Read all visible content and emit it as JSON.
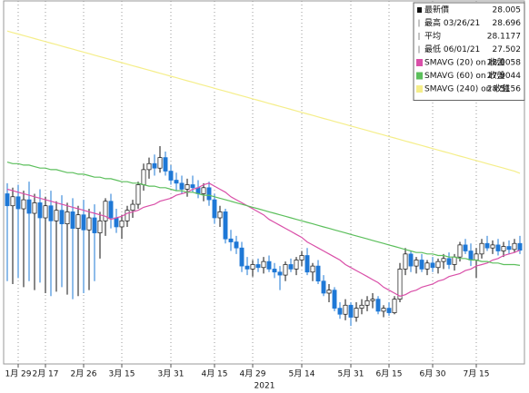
{
  "chart_data": {
    "type": "candlestick",
    "ylim": [
      27.25,
      29.66
    ],
    "x_label": "2021",
    "up_color": "#ffffff",
    "down_color": "#1e78d6",
    "categories": [
      null,
      null,
      "1月 29",
      null,
      null,
      null,
      null,
      "2月 17",
      null,
      null,
      null,
      null,
      null,
      null,
      "2月 26",
      null,
      null,
      null,
      null,
      null,
      null,
      "3月 15",
      null,
      null,
      null,
      null,
      null,
      null,
      null,
      null,
      "3月 31",
      null,
      null,
      null,
      null,
      null,
      null,
      null,
      "4月 15",
      null,
      null,
      null,
      null,
      null,
      null,
      "4月 29",
      null,
      null,
      null,
      null,
      null,
      null,
      null,
      null,
      "5月 14",
      null,
      null,
      null,
      null,
      null,
      null,
      null,
      null,
      "5月 31",
      null,
      null,
      null,
      null,
      null,
      null,
      "6月 15",
      null,
      null,
      null,
      null,
      null,
      null,
      null,
      "6月 30",
      null,
      null,
      null,
      null,
      null,
      null,
      null,
      "7月 15",
      null,
      null,
      null,
      null,
      null,
      null,
      null,
      null
    ],
    "candles": [
      [
        28.38,
        28.45,
        27.8,
        28.3
      ],
      [
        28.3,
        28.42,
        27.78,
        28.36
      ],
      [
        28.36,
        28.44,
        27.82,
        28.28
      ],
      [
        28.28,
        28.4,
        27.76,
        28.34
      ],
      [
        28.34,
        28.46,
        27.8,
        28.25
      ],
      [
        28.25,
        28.38,
        27.74,
        28.32
      ],
      [
        28.32,
        28.41,
        27.79,
        28.22
      ],
      [
        28.22,
        28.36,
        27.72,
        28.3
      ],
      [
        28.3,
        28.4,
        27.7,
        28.2
      ],
      [
        28.2,
        28.33,
        27.73,
        28.27
      ],
      [
        28.27,
        28.37,
        27.76,
        28.18
      ],
      [
        28.18,
        28.32,
        27.71,
        28.26
      ],
      [
        28.26,
        28.35,
        27.68,
        28.15
      ],
      [
        28.15,
        28.3,
        27.7,
        28.24
      ],
      [
        28.24,
        28.34,
        27.72,
        28.14
      ],
      [
        28.14,
        28.28,
        27.74,
        28.22
      ],
      [
        28.22,
        28.31,
        27.8,
        28.12
      ],
      [
        28.12,
        28.26,
        27.95,
        28.2
      ],
      [
        28.2,
        28.35,
        28.1,
        28.33
      ],
      [
        28.33,
        28.38,
        28.15,
        28.22
      ],
      [
        28.22,
        28.28,
        28.12,
        28.16
      ],
      [
        28.16,
        28.24,
        28.08,
        28.2
      ],
      [
        28.2,
        28.3,
        28.16,
        28.27
      ],
      [
        28.27,
        28.34,
        28.22,
        28.31
      ],
      [
        28.31,
        28.46,
        28.28,
        28.44
      ],
      [
        28.44,
        28.58,
        28.4,
        28.54
      ],
      [
        28.54,
        28.62,
        28.48,
        28.58
      ],
      [
        28.58,
        28.64,
        28.5,
        28.55
      ],
      [
        28.55,
        28.696,
        28.52,
        28.62
      ],
      [
        28.62,
        28.66,
        28.5,
        28.53
      ],
      [
        28.53,
        28.57,
        28.44,
        28.47
      ],
      [
        28.47,
        28.52,
        28.4,
        28.45
      ],
      [
        28.45,
        28.5,
        28.38,
        28.41
      ],
      [
        28.41,
        28.48,
        28.36,
        28.44
      ],
      [
        28.44,
        28.5,
        28.39,
        28.42
      ],
      [
        28.42,
        28.47,
        28.35,
        28.38
      ],
      [
        28.38,
        28.45,
        28.33,
        28.42
      ],
      [
        28.42,
        28.46,
        28.3,
        28.34
      ],
      [
        28.34,
        28.38,
        28.18,
        28.22
      ],
      [
        28.22,
        28.3,
        28.16,
        28.26
      ],
      [
        28.26,
        28.28,
        28.05,
        28.08
      ],
      [
        28.08,
        28.14,
        28.0,
        28.06
      ],
      [
        28.06,
        28.1,
        27.98,
        28.02
      ],
      [
        28.02,
        28.06,
        27.86,
        27.9
      ],
      [
        27.9,
        27.96,
        27.84,
        27.88
      ],
      [
        27.88,
        27.94,
        27.83,
        27.91
      ],
      [
        27.91,
        27.95,
        27.86,
        27.89
      ],
      [
        27.89,
        27.96,
        27.85,
        27.93
      ],
      [
        27.93,
        27.97,
        27.86,
        27.88
      ],
      [
        27.88,
        27.92,
        27.82,
        27.86
      ],
      [
        27.86,
        27.9,
        27.74,
        27.84
      ],
      [
        27.84,
        27.93,
        27.8,
        27.91
      ],
      [
        27.91,
        27.95,
        27.86,
        27.88
      ],
      [
        27.88,
        27.96,
        27.84,
        27.94
      ],
      [
        27.94,
        28.0,
        27.9,
        27.97
      ],
      [
        27.97,
        28.02,
        27.84,
        27.86
      ],
      [
        27.86,
        27.92,
        27.8,
        27.9
      ],
      [
        27.9,
        27.94,
        27.78,
        27.8
      ],
      [
        27.8,
        27.84,
        27.7,
        27.72
      ],
      [
        27.72,
        27.78,
        27.66,
        27.74
      ],
      [
        27.74,
        27.76,
        27.6,
        27.62
      ],
      [
        27.62,
        27.66,
        27.55,
        27.58
      ],
      [
        27.58,
        27.68,
        27.54,
        27.64
      ],
      [
        27.64,
        27.66,
        27.502,
        27.56
      ],
      [
        27.56,
        27.66,
        27.53,
        27.62
      ],
      [
        27.62,
        27.68,
        27.58,
        27.64
      ],
      [
        27.64,
        27.7,
        27.6,
        27.67
      ],
      [
        27.67,
        27.72,
        27.62,
        27.68
      ],
      [
        27.68,
        27.7,
        27.58,
        27.6
      ],
      [
        27.6,
        27.64,
        27.56,
        27.62
      ],
      [
        27.62,
        27.66,
        27.57,
        27.59
      ],
      [
        27.59,
        27.7,
        27.58,
        27.68
      ],
      [
        27.68,
        27.92,
        27.66,
        27.88
      ],
      [
        27.88,
        28.02,
        27.84,
        27.98
      ],
      [
        27.98,
        28.0,
        27.86,
        27.9
      ],
      [
        27.9,
        27.96,
        27.85,
        27.94
      ],
      [
        27.94,
        27.98,
        27.86,
        27.88
      ],
      [
        27.88,
        27.94,
        27.84,
        27.92
      ],
      [
        27.92,
        27.96,
        27.86,
        27.89
      ],
      [
        27.89,
        27.95,
        27.85,
        27.93
      ],
      [
        27.93,
        27.98,
        27.88,
        27.95
      ],
      [
        27.95,
        27.99,
        27.88,
        27.91
      ],
      [
        27.91,
        27.98,
        27.87,
        27.96
      ],
      [
        27.96,
        28.06,
        27.93,
        28.04
      ],
      [
        28.04,
        28.08,
        27.98,
        28.0
      ],
      [
        28.0,
        28.05,
        27.9,
        27.94
      ],
      [
        27.94,
        28.02,
        27.82,
        27.98
      ],
      [
        27.98,
        28.08,
        27.95,
        28.05
      ],
      [
        28.05,
        28.1,
        28.0,
        28.02
      ],
      [
        28.02,
        28.07,
        27.98,
        28.04
      ],
      [
        28.04,
        28.08,
        27.97,
        28.0
      ],
      [
        28.0,
        28.06,
        27.96,
        28.03
      ],
      [
        28.03,
        28.07,
        27.98,
        28.01
      ],
      [
        28.01,
        28.08,
        27.99,
        28.05
      ],
      [
        28.05,
        28.1,
        27.98,
        28.005
      ]
    ],
    "series": [
      {
        "name": "SMAVG (20) on 收盤",
        "color": "#d94fa8",
        "values": [
          28.41,
          28.4,
          28.39,
          28.38,
          28.37,
          28.36,
          28.35,
          28.34,
          28.33,
          28.32,
          28.31,
          28.3,
          28.29,
          28.28,
          28.27,
          28.26,
          28.25,
          28.24,
          28.23,
          28.21,
          28.22,
          28.23,
          28.25,
          28.26,
          28.27,
          28.29,
          28.3,
          28.31,
          28.33,
          28.34,
          28.35,
          28.37,
          28.38,
          28.39,
          28.41,
          28.42,
          28.44,
          28.45,
          28.43,
          28.41,
          28.39,
          28.36,
          28.34,
          28.32,
          28.3,
          28.28,
          28.26,
          28.24,
          28.21,
          28.19,
          28.17,
          28.15,
          28.13,
          28.11,
          28.09,
          28.06,
          28.04,
          28.02,
          28.0,
          27.98,
          27.96,
          27.94,
          27.91,
          27.89,
          27.87,
          27.85,
          27.83,
          27.81,
          27.79,
          27.76,
          27.74,
          27.72,
          27.7,
          27.71,
          27.73,
          27.74,
          27.76,
          27.77,
          27.78,
          27.8,
          27.81,
          27.83,
          27.84,
          27.85,
          27.87,
          27.88,
          27.9,
          27.91,
          27.92,
          27.94,
          27.95,
          27.97,
          27.98,
          27.99,
          28.0058
        ]
      },
      {
        "name": "SMAVG (60) on 收盤",
        "color": "#5cbf5c",
        "values": [
          28.59,
          28.58,
          28.58,
          28.57,
          28.57,
          28.56,
          28.55,
          28.55,
          28.54,
          28.54,
          28.53,
          28.52,
          28.52,
          28.51,
          28.51,
          28.5,
          28.49,
          28.49,
          28.48,
          28.48,
          28.47,
          28.46,
          28.46,
          28.45,
          28.45,
          28.44,
          28.43,
          28.43,
          28.42,
          28.42,
          28.41,
          28.4,
          28.4,
          28.39,
          28.39,
          28.38,
          28.37,
          28.37,
          28.36,
          28.35,
          28.34,
          28.33,
          28.32,
          28.31,
          28.3,
          28.29,
          28.28,
          28.27,
          28.26,
          28.25,
          28.24,
          28.23,
          28.22,
          28.21,
          28.2,
          28.19,
          28.18,
          28.17,
          28.16,
          28.15,
          28.14,
          28.13,
          28.12,
          28.11,
          28.1,
          28.09,
          28.08,
          28.07,
          28.06,
          28.05,
          28.04,
          28.03,
          28.02,
          28.01,
          28.0,
          27.99,
          27.99,
          27.98,
          27.98,
          27.97,
          27.97,
          27.96,
          27.96,
          27.95,
          27.95,
          27.94,
          27.94,
          27.93,
          27.93,
          27.92,
          27.92,
          27.91,
          27.91,
          27.91,
          27.9044
        ]
      },
      {
        "name": "SMAVG (240) on 收盤",
        "color": "#f5ee8a",
        "values": [
          29.46,
          29.45,
          29.44,
          29.43,
          29.42,
          29.41,
          29.4,
          29.39,
          29.38,
          29.37,
          29.36,
          29.35,
          29.34,
          29.33,
          29.32,
          29.31,
          29.3,
          29.29,
          29.28,
          29.27,
          29.26,
          29.25,
          29.24,
          29.23,
          29.22,
          29.21,
          29.2,
          29.19,
          29.18,
          29.17,
          29.16,
          29.15,
          29.14,
          29.13,
          29.12,
          29.11,
          29.1,
          29.09,
          29.08,
          29.07,
          29.06,
          29.05,
          29.04,
          29.03,
          29.02,
          29.01,
          29.0,
          28.99,
          28.98,
          28.97,
          28.96,
          28.95,
          28.94,
          28.93,
          28.92,
          28.91,
          28.9,
          28.89,
          28.88,
          28.87,
          28.86,
          28.85,
          28.84,
          28.83,
          28.82,
          28.81,
          28.8,
          28.79,
          28.78,
          28.77,
          28.76,
          28.75,
          28.74,
          28.73,
          28.72,
          28.71,
          28.7,
          28.69,
          28.68,
          28.67,
          28.66,
          28.65,
          28.64,
          28.63,
          28.62,
          28.61,
          28.6,
          28.59,
          28.58,
          28.57,
          28.56,
          28.55,
          28.54,
          28.53,
          28.5156
        ]
      }
    ],
    "stats": [
      {
        "label": "最新價",
        "ref": "chart_data.candles.94.3"
      },
      {
        "label": "最高 03/26/21",
        "ref": "chart_data.candles.28.1"
      },
      {
        "label": "平均",
        "value": 28.1177
      },
      {
        "label": "最低 06/01/21",
        "ref": "chart_data.candles.63.2"
      }
    ]
  }
}
